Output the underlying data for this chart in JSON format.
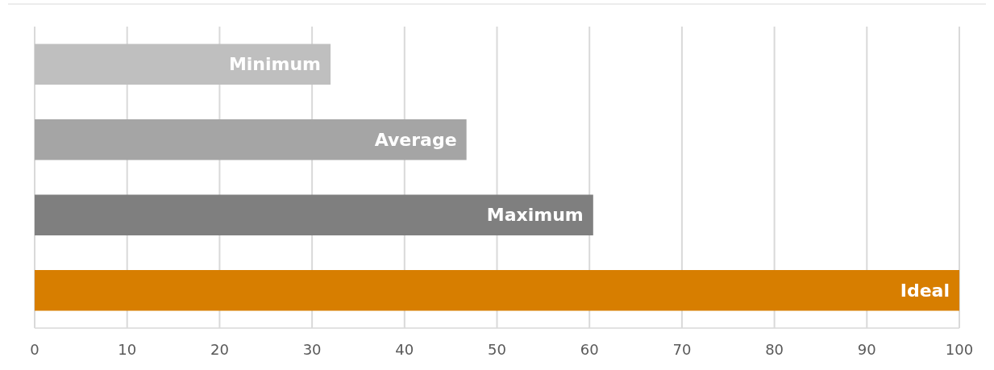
{
  "chart_data": {
    "type": "bar",
    "orientation": "horizontal",
    "categories": [
      "Minimum",
      "Average",
      "Maximum",
      "Ideal"
    ],
    "values": [
      32,
      46.7,
      60.4,
      100
    ],
    "colors": [
      "#bfbfbf",
      "#a5a5a5",
      "#7f7f7f",
      "#d77e00"
    ],
    "xlim": [
      0,
      100
    ],
    "xticks": [
      0,
      10,
      20,
      30,
      40,
      50,
      60,
      70,
      80,
      90,
      100
    ],
    "grid": "x"
  }
}
